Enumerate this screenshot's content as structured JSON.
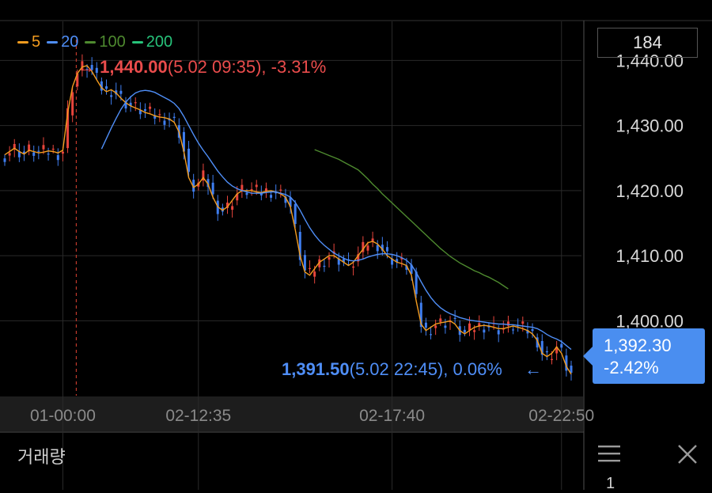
{
  "period": "184",
  "ma_legend": [
    {
      "label": "5",
      "color": "#f39c1f"
    },
    {
      "label": "20",
      "color": "#4f8ef7"
    },
    {
      "label": "100",
      "color": "#4e8a2f"
    },
    {
      "label": "200",
      "color": "#27c27a"
    }
  ],
  "high_marker": {
    "arrow": "→",
    "price": "1,440.00",
    "detail": "(5.02 09:35), -3.31%"
  },
  "low_marker": {
    "price": "1,391.50",
    "detail": "(5.02 22:45), 0.06%",
    "arrow": "←"
  },
  "current_price": {
    "value": "1,392.30",
    "change": "-2.42%",
    "color": "#4a8ef0"
  },
  "volume_panel": {
    "title": "거래량",
    "tick": "1"
  },
  "colors": {
    "up": "#e8453c",
    "down": "#3f7ef0",
    "grid": "#2a2a2a",
    "high_line": "#c0392b"
  },
  "chart_data": {
    "type": "line",
    "title": "",
    "y_ticks": [
      "1,440.00",
      "1,430.00",
      "1,420.00",
      "1,410.00",
      "1,400.00"
    ],
    "y_tick_values": [
      1440,
      1430,
      1420,
      1410,
      1400
    ],
    "ylim": [
      1388.5,
      1446
    ],
    "x_ticks": [
      "01-00:00",
      "02-12:35",
      "02-17:40",
      "02-22:50"
    ],
    "x_tick_index": [
      12,
      40,
      80,
      115
    ],
    "n_bars": 118,
    "series": [
      {
        "name": "5",
        "color": "#f39c1f",
        "values": [
          1425.5,
          1426.0,
          1426.5,
          1426.0,
          1425.6,
          1426.2,
          1426.0,
          1425.8,
          1425.9,
          1426.1,
          1426.0,
          1425.8,
          1426.2,
          1432.0,
          1436.0,
          1438.0,
          1439.0,
          1439.2,
          1438.3,
          1437.0,
          1435.8,
          1435.2,
          1435.5,
          1435.0,
          1434.2,
          1433.5,
          1433.0,
          1432.7,
          1432.4,
          1432.0,
          1431.8,
          1431.5,
          1431.3,
          1431.2,
          1431.0,
          1430.5,
          1429.0,
          1426.0,
          1422.0,
          1420.5,
          1421.0,
          1422.0,
          1421.0,
          1419.0,
          1417.5,
          1417.0,
          1417.5,
          1418.5,
          1419.5,
          1420.0,
          1420.0,
          1420.0,
          1419.8,
          1419.7,
          1419.9,
          1420.0,
          1419.8,
          1419.5,
          1419.0,
          1417.5,
          1414.0,
          1410.0,
          1407.5,
          1407.0,
          1408.0,
          1409.0,
          1409.5,
          1410.0,
          1410.0,
          1409.5,
          1409.0,
          1408.5,
          1409.0,
          1410.0,
          1411.0,
          1412.0,
          1412.2,
          1411.8,
          1411.0,
          1410.0,
          1409.5,
          1409.0,
          1408.8,
          1408.5,
          1407.0,
          1403.0,
          1399.5,
          1398.5,
          1399.0,
          1399.5,
          1399.7,
          1399.8,
          1400.0,
          1399.5,
          1398.5,
          1398.0,
          1398.5,
          1399.0,
          1399.2,
          1399.3,
          1399.2,
          1399.0,
          1398.8,
          1398.8,
          1399.0,
          1399.2,
          1399.0,
          1398.8,
          1398.5,
          1398.0,
          1397.0,
          1395.0,
          1394.5,
          1395.0,
          1396.0,
          1395.0,
          1393.0,
          1391.8
        ]
      },
      {
        "name": "20",
        "color": "#4f8ef7",
        "values": [
          null,
          null,
          null,
          null,
          null,
          null,
          null,
          null,
          null,
          null,
          null,
          null,
          null,
          null,
          null,
          null,
          null,
          null,
          null,
          null,
          1426.4,
          1428.0,
          1429.6,
          1431.1,
          1432.5,
          1433.6,
          1434.4,
          1435.0,
          1435.3,
          1435.4,
          1435.3,
          1435.1,
          1434.7,
          1434.3,
          1433.9,
          1433.4,
          1432.6,
          1431.4,
          1430.0,
          1428.6,
          1427.3,
          1426.2,
          1425.2,
          1424.1,
          1423.0,
          1422.1,
          1421.3,
          1420.7,
          1420.3,
          1420.0,
          1419.8,
          1419.6,
          1419.6,
          1419.6,
          1419.7,
          1419.8,
          1419.8,
          1419.6,
          1419.4,
          1419.0,
          1418.2,
          1417.0,
          1415.6,
          1414.3,
          1413.2,
          1412.3,
          1411.6,
          1411.0,
          1410.4,
          1410.0,
          1409.6,
          1409.3,
          1409.2,
          1409.3,
          1409.5,
          1409.8,
          1410.0,
          1410.2,
          1410.3,
          1410.3,
          1410.2,
          1410.0,
          1409.7,
          1409.3,
          1408.6,
          1407.4,
          1406.0,
          1404.7,
          1403.6,
          1402.7,
          1402.0,
          1401.5,
          1401.1,
          1400.8,
          1400.5,
          1400.3,
          1400.1,
          1400.0,
          1399.9,
          1399.8,
          1399.7,
          1399.6,
          1399.5,
          1399.5,
          1399.4,
          1399.4,
          1399.3,
          1399.2,
          1399.1,
          1399.0,
          1398.8,
          1398.4,
          1397.9,
          1397.5,
          1397.2,
          1396.8,
          1396.2,
          1395.6
        ]
      },
      {
        "name": "100",
        "color": "#4e8a2f",
        "values": [
          null,
          null,
          null,
          null,
          null,
          null,
          null,
          null,
          null,
          null,
          null,
          null,
          null,
          null,
          null,
          null,
          null,
          null,
          null,
          null,
          null,
          null,
          null,
          null,
          null,
          null,
          null,
          null,
          null,
          null,
          null,
          null,
          null,
          null,
          null,
          null,
          null,
          null,
          null,
          null,
          null,
          null,
          null,
          null,
          null,
          null,
          null,
          null,
          null,
          null,
          null,
          null,
          null,
          null,
          null,
          null,
          null,
          null,
          null,
          null,
          null,
          null,
          null,
          null,
          1426.3,
          1426.0,
          1425.7,
          1425.4,
          1425.1,
          1424.8,
          1424.4,
          1424.0,
          1423.6,
          1423.2,
          1422.5,
          1421.8,
          1421.0,
          1420.3,
          1419.5,
          1418.8,
          1418.1,
          1417.4,
          1416.7,
          1416.0,
          1415.3,
          1414.6,
          1413.9,
          1413.2,
          1412.5,
          1411.8,
          1411.1,
          1410.5,
          1409.9,
          1409.4,
          1408.9,
          1408.5,
          1408.1,
          1407.7,
          1407.4,
          1407.0,
          1406.7,
          1406.3,
          1405.9,
          1405.4,
          1404.9
        ]
      },
      {
        "name": "200",
        "color": "#27c27a",
        "values": []
      }
    ]
  }
}
